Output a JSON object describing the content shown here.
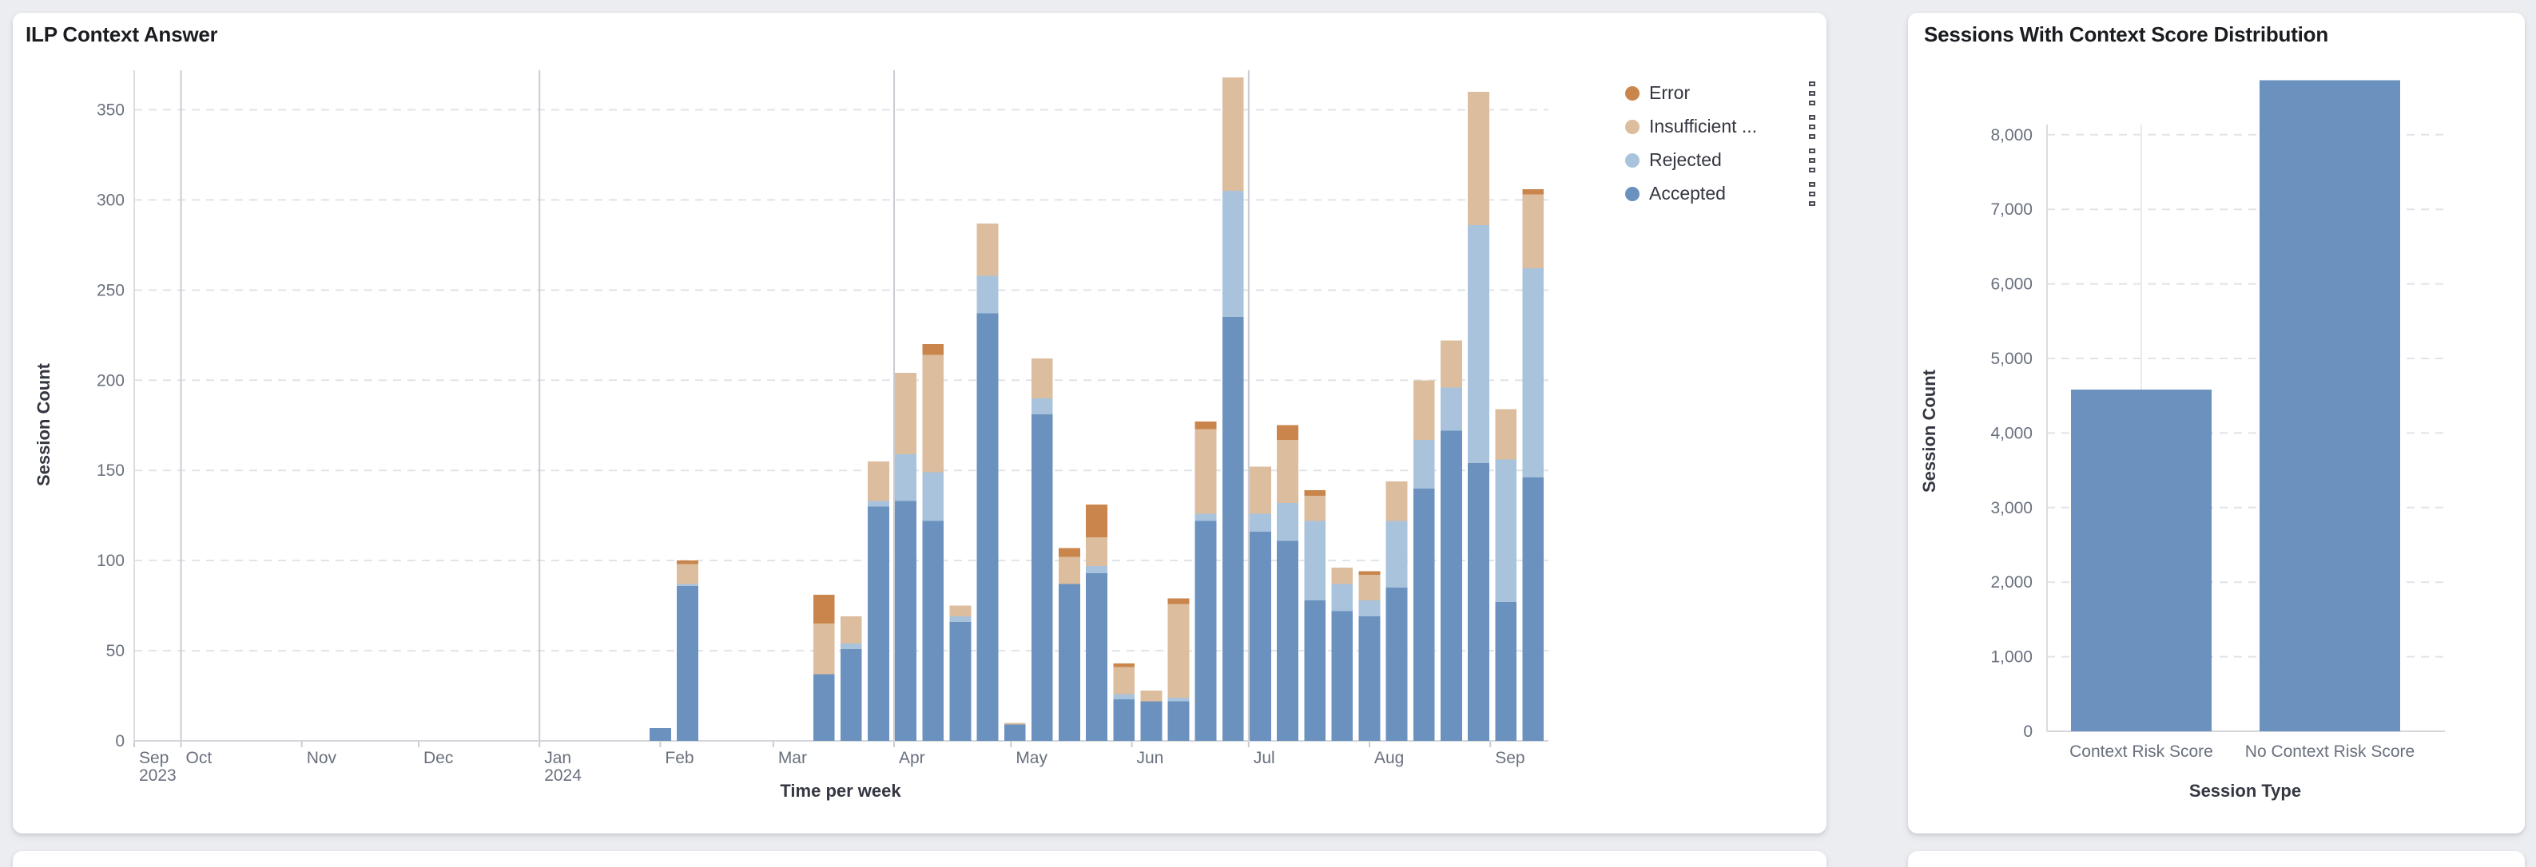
{
  "page": {
    "background": "#ecedf1",
    "card_background": "#ffffff"
  },
  "colors": {
    "accepted": "#6b92bf",
    "rejected": "#a9c3dd",
    "insufficient": "#dcbd9d",
    "error": "#c9854c",
    "grid_dash": "#e0e3e8",
    "quarter_line": "#c9ccd2",
    "axis_line": "#d4d6db",
    "tick_text": "#69707d"
  },
  "chart_data": [
    {
      "type": "bar",
      "stacked": true,
      "title": "ILP Context Answer",
      "xlabel": "Time per week",
      "ylabel": "Session Count",
      "ylim": [
        0,
        350
      ],
      "y_ticks": [
        0,
        50,
        100,
        150,
        200,
        250,
        300,
        350
      ],
      "grid": "horizontal-dashed",
      "legend_position": "right",
      "x_axis": {
        "scale": "time",
        "domain": [
          "2023-09-19",
          "2024-09-16"
        ],
        "ticks": [
          {
            "label": "Sep",
            "sub": "2023",
            "date": "2023-09-19",
            "edge": true
          },
          {
            "label": "Oct",
            "date": "2023-10-01",
            "quarter": true
          },
          {
            "label": "Nov",
            "date": "2023-11-01"
          },
          {
            "label": "Dec",
            "date": "2023-12-01"
          },
          {
            "label": "Jan",
            "sub": "2024",
            "date": "2024-01-01",
            "quarter": true
          },
          {
            "label": "Feb",
            "date": "2024-02-01"
          },
          {
            "label": "Mar",
            "date": "2024-03-01"
          },
          {
            "label": "Apr",
            "date": "2024-04-01",
            "quarter": true
          },
          {
            "label": "May",
            "date": "2024-05-01"
          },
          {
            "label": "Jun",
            "date": "2024-06-01"
          },
          {
            "label": "Jul",
            "date": "2024-07-01",
            "quarter": true
          },
          {
            "label": "Aug",
            "date": "2024-08-01"
          },
          {
            "label": "Sep",
            "date": "2024-09-01"
          }
        ]
      },
      "weeks": [
        "2024-01-29",
        "2024-02-05",
        "2024-03-11",
        "2024-03-18",
        "2024-03-25",
        "2024-04-01",
        "2024-04-08",
        "2024-04-15",
        "2024-04-22",
        "2024-04-29",
        "2024-05-06",
        "2024-05-13",
        "2024-05-20",
        "2024-05-27",
        "2024-06-03",
        "2024-06-10",
        "2024-06-17",
        "2024-06-24",
        "2024-07-01",
        "2024-07-08",
        "2024-07-15",
        "2024-07-22",
        "2024-07-29",
        "2024-08-05",
        "2024-08-12",
        "2024-08-19",
        "2024-08-26",
        "2024-09-02",
        "2024-09-09"
      ],
      "stack_order": [
        "Accepted",
        "Rejected",
        "Insufficient ...",
        "Error"
      ],
      "series": [
        {
          "name": "Error",
          "color": "#c9854c",
          "values": [
            0,
            2,
            16,
            0,
            0,
            0,
            6,
            0,
            0,
            0,
            0,
            5,
            18,
            2,
            0,
            3,
            4,
            0,
            0,
            8,
            3,
            0,
            2,
            0,
            0,
            0,
            0,
            0,
            3
          ]
        },
        {
          "name": "Insufficient ...",
          "color": "#dcbd9d",
          "values": [
            0,
            11,
            28,
            15,
            22,
            45,
            65,
            6,
            29,
            1,
            22,
            15,
            16,
            15,
            6,
            52,
            47,
            63,
            26,
            35,
            14,
            9,
            14,
            22,
            33,
            26,
            74,
            28,
            41
          ]
        },
        {
          "name": "Rejected",
          "color": "#a9c3dd",
          "values": [
            0,
            1,
            0,
            3,
            3,
            26,
            27,
            3,
            21,
            0,
            9,
            0,
            4,
            3,
            0,
            2,
            4,
            70,
            10,
            21,
            44,
            15,
            9,
            37,
            27,
            24,
            132,
            79,
            116
          ]
        },
        {
          "name": "Accepted",
          "color": "#6b92bf",
          "values": [
            7,
            86,
            37,
            51,
            130,
            133,
            122,
            66,
            237,
            9,
            181,
            87,
            93,
            23,
            22,
            22,
            122,
            235,
            116,
            111,
            78,
            72,
            69,
            85,
            140,
            172,
            154,
            77,
            146
          ]
        }
      ]
    },
    {
      "type": "bar",
      "title": "Sessions With Context Score Distribution",
      "xlabel": "Session Type",
      "ylabel": "Session Count",
      "categories": [
        "Context Risk Score",
        "No Context Risk Score"
      ],
      "values": [
        4580,
        8730
      ],
      "bar_color": "#6b92bf",
      "ylim": [
        0,
        8800
      ],
      "y_ticks": [
        0,
        1000,
        2000,
        3000,
        4000,
        5000,
        6000,
        7000,
        8000
      ],
      "grid": "horizontal-dashed"
    }
  ]
}
